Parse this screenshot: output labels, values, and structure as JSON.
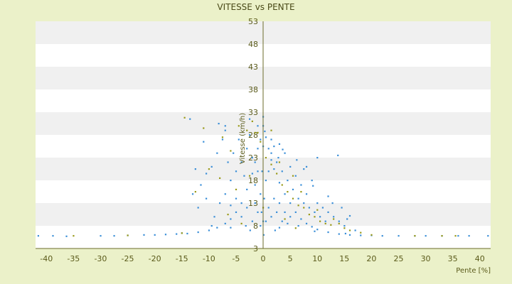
{
  "chart_data": {
    "type": "scatter",
    "title": "VITESSE vs PENTE",
    "xlabel": "Pente [%]",
    "ylabel": "Vitesse (km/h)",
    "xlim": [
      -42,
      42
    ],
    "ylim": [
      3,
      53
    ],
    "x_ticks": [
      "-40",
      "-35",
      "-30",
      "-25",
      "-20",
      "-15",
      "-10",
      "-5",
      "0",
      "5",
      "10",
      "15",
      "20",
      "25",
      "30",
      "35",
      "40"
    ],
    "y_ticks": [
      "3",
      "8",
      "13",
      "18",
      "23",
      "28",
      "33",
      "38",
      "43",
      "48",
      "53"
    ],
    "grid": "horizontal alternating bands",
    "legend": "none",
    "colors": {
      "background": "#ebf1c9",
      "plot": "#ffffff",
      "band": "#f0f0f0",
      "axis": "#5a5a1a",
      "series_blue": "#3b8fd8",
      "series_olive": "#9a9a1a"
    },
    "series": [
      {
        "color": "#3b8fd8",
        "points": [
          [
            -41.5,
            5.8
          ],
          [
            -38.8,
            5.8
          ],
          [
            -36.3,
            5.7
          ],
          [
            -30.0,
            5.8
          ],
          [
            -27.5,
            5.8
          ],
          [
            -25.0,
            5.9
          ],
          [
            -22.0,
            6.0
          ],
          [
            -20.0,
            6.0
          ],
          [
            -18.0,
            6.1
          ],
          [
            -16.0,
            6.2
          ],
          [
            -14.0,
            6.3
          ],
          [
            -12.0,
            6.6
          ],
          [
            -10.0,
            7.0
          ],
          [
            -8.5,
            7.6
          ],
          [
            -7.0,
            8.5
          ],
          [
            -6.0,
            9.5
          ],
          [
            -5.0,
            11.0
          ],
          [
            -4.0,
            13.0
          ],
          [
            -3.0,
            16.0
          ],
          [
            -2.0,
            19.5
          ],
          [
            -1.5,
            22.0
          ],
          [
            -1.0,
            25.0
          ],
          [
            -0.5,
            27.0
          ],
          [
            0.0,
            25.5
          ],
          [
            0.5,
            27.5
          ],
          [
            1.0,
            25.0
          ],
          [
            1.5,
            22.5
          ],
          [
            2.0,
            20.5
          ],
          [
            3.0,
            17.5
          ],
          [
            4.0,
            15.0
          ],
          [
            5.0,
            13.0
          ],
          [
            6.0,
            11.0
          ],
          [
            7.0,
            9.5
          ],
          [
            8.0,
            8.5
          ],
          [
            9.0,
            7.8
          ],
          [
            10.0,
            7.2
          ],
          [
            12.0,
            6.6
          ],
          [
            14.0,
            6.2
          ],
          [
            16.0,
            6.0
          ],
          [
            18.0,
            5.9
          ],
          [
            20.0,
            5.9
          ],
          [
            22.0,
            5.8
          ],
          [
            25.0,
            5.8
          ],
          [
            28.0,
            5.8
          ],
          [
            30.0,
            5.8
          ],
          [
            33.0,
            5.8
          ],
          [
            36.0,
            5.8
          ],
          [
            38.0,
            5.8
          ],
          [
            41.5,
            5.8
          ],
          [
            -11.5,
            17.0
          ],
          [
            -10.5,
            19.5
          ],
          [
            -9.5,
            21.0
          ],
          [
            -8.5,
            24.0
          ],
          [
            -7.5,
            27.0
          ],
          [
            -7.0,
            29.0
          ],
          [
            -6.5,
            22.0
          ],
          [
            -6.0,
            18.0
          ],
          [
            -5.5,
            24.0
          ],
          [
            -5.0,
            20.0
          ],
          [
            -4.5,
            27.0
          ],
          [
            -4.0,
            22.0
          ],
          [
            -3.5,
            19.0
          ],
          [
            -3.0,
            25.0
          ],
          [
            -2.5,
            28.0
          ],
          [
            -2.0,
            23.0
          ],
          [
            -1.5,
            17.0
          ],
          [
            -1.0,
            20.0
          ],
          [
            -0.5,
            15.0
          ],
          [
            0.5,
            18.0
          ],
          [
            1.0,
            20.0
          ],
          [
            1.5,
            24.0
          ],
          [
            2.0,
            25.5
          ],
          [
            2.5,
            22.0
          ],
          [
            3.0,
            26.0
          ],
          [
            3.5,
            20.0
          ],
          [
            4.0,
            24.0
          ],
          [
            4.5,
            18.0
          ],
          [
            5.0,
            21.0
          ],
          [
            5.5,
            16.0
          ],
          [
            6.0,
            19.0
          ],
          [
            6.5,
            14.0
          ],
          [
            7.0,
            17.0
          ],
          [
            7.5,
            13.0
          ],
          [
            8.0,
            15.0
          ],
          [
            8.5,
            12.0
          ],
          [
            9.0,
            18.0
          ],
          [
            9.5,
            11.0
          ],
          [
            10.0,
            13.0
          ],
          [
            10.5,
            10.0
          ],
          [
            11.0,
            12.0
          ],
          [
            11.5,
            9.0
          ],
          [
            12.0,
            11.0
          ],
          [
            13.0,
            10.0
          ],
          [
            14.0,
            9.0
          ],
          [
            15.0,
            8.0
          ],
          [
            17.0,
            7.0
          ],
          [
            13.8,
            23.5
          ],
          [
            10.0,
            23.0
          ],
          [
            8.0,
            21.0
          ],
          [
            -8.0,
            13.0
          ],
          [
            -7.0,
            15.0
          ],
          [
            -6.0,
            12.5
          ],
          [
            -5.0,
            14.0
          ],
          [
            -4.0,
            10.0
          ],
          [
            -3.0,
            12.0
          ],
          [
            -2.0,
            9.0
          ],
          [
            -1.5,
            13.0
          ],
          [
            -1.0,
            11.0
          ],
          [
            -0.5,
            8.0
          ],
          [
            0.5,
            9.0
          ],
          [
            1.0,
            12.0
          ],
          [
            1.5,
            10.0
          ],
          [
            2.0,
            14.0
          ],
          [
            2.5,
            11.0
          ],
          [
            3.0,
            13.0
          ],
          [
            3.5,
            9.0
          ],
          [
            4.0,
            11.0
          ],
          [
            4.5,
            8.5
          ],
          [
            5.0,
            10.0
          ],
          [
            0.0,
            32.0
          ],
          [
            0.0,
            30.0
          ],
          [
            -2.5,
            31.5
          ],
          [
            -1.0,
            30.0
          ],
          [
            0.3,
            28.8
          ],
          [
            -13.0,
            15.0
          ],
          [
            -12.5,
            20.5
          ],
          [
            -12.0,
            12.0
          ],
          [
            -9.0,
            10.0
          ],
          [
            -10.5,
            14.0
          ],
          [
            -11.0,
            26.5
          ],
          [
            -13.5,
            31.5
          ],
          [
            -8.2,
            30.5
          ],
          [
            -7.0,
            30.0
          ],
          [
            1.5,
            27.0
          ],
          [
            2.8,
            23.0
          ],
          [
            3.6,
            24.8
          ],
          [
            6.2,
            22.5
          ],
          [
            7.5,
            20.5
          ],
          [
            9.2,
            16.8
          ],
          [
            12.0,
            14.5
          ],
          [
            12.8,
            13.0
          ],
          [
            14.5,
            12.0
          ],
          [
            15.5,
            9.5
          ],
          [
            16.0,
            10.2
          ],
          [
            -0.2,
            20.0
          ],
          [
            0.2,
            14.0
          ],
          [
            -0.3,
            11.0
          ],
          [
            0.0,
            9.0
          ],
          [
            0.1,
            6.0
          ],
          [
            -3.2,
            8.0
          ],
          [
            -2.4,
            7.0
          ],
          [
            2.2,
            7.0
          ],
          [
            3.0,
            7.6
          ],
          [
            -6.0,
            7.6
          ],
          [
            6.5,
            8.0
          ],
          [
            -9.5,
            8.0
          ],
          [
            9.5,
            6.8
          ],
          [
            -15.0,
            6.4
          ],
          [
            15.2,
            6.3
          ]
        ]
      },
      {
        "color": "#9a9a1a",
        "points": [
          [
            -35.0,
            5.8
          ],
          [
            -25.0,
            5.9
          ],
          [
            -15.0,
            6.4
          ],
          [
            -14.5,
            31.8
          ],
          [
            -11.0,
            29.5
          ],
          [
            -7.5,
            27.5
          ],
          [
            -6.0,
            24.5
          ],
          [
            -4.5,
            30.0
          ],
          [
            -3.0,
            29.0
          ],
          [
            -1.5,
            28.5
          ],
          [
            -0.5,
            26.5
          ],
          [
            0.5,
            23.0
          ],
          [
            1.5,
            21.5
          ],
          [
            2.5,
            19.5
          ],
          [
            3.5,
            17.0
          ],
          [
            4.5,
            15.5
          ],
          [
            5.5,
            14.0
          ],
          [
            6.5,
            12.5
          ],
          [
            7.5,
            12.0
          ],
          [
            8.5,
            10.5
          ],
          [
            9.5,
            10.0
          ],
          [
            10.5,
            9.0
          ],
          [
            11.5,
            8.5
          ],
          [
            12.5,
            8.2
          ],
          [
            14.0,
            8.5
          ],
          [
            15.0,
            7.5
          ],
          [
            16.0,
            7.0
          ],
          [
            -12.5,
            15.5
          ],
          [
            -10.0,
            20.5
          ],
          [
            -8.0,
            18.5
          ],
          [
            -5.0,
            16.0
          ],
          [
            -2.5,
            19.0
          ],
          [
            3.0,
            22.0
          ],
          [
            5.5,
            19.0
          ],
          [
            7.0,
            15.5
          ],
          [
            10.0,
            11.5
          ],
          [
            13.0,
            9.5
          ],
          [
            18.0,
            6.5
          ],
          [
            20.0,
            6.0
          ],
          [
            33.0,
            5.8
          ],
          [
            35.5,
            5.8
          ],
          [
            28.0,
            5.8
          ],
          [
            -2.0,
            31.0
          ],
          [
            -1.0,
            28.5
          ],
          [
            1.5,
            29.0
          ],
          [
            -6.5,
            10.5
          ],
          [
            -4.0,
            8.5
          ],
          [
            4.0,
            9.5
          ],
          [
            6.0,
            7.5
          ],
          [
            0.0,
            12.0
          ]
        ]
      }
    ]
  }
}
